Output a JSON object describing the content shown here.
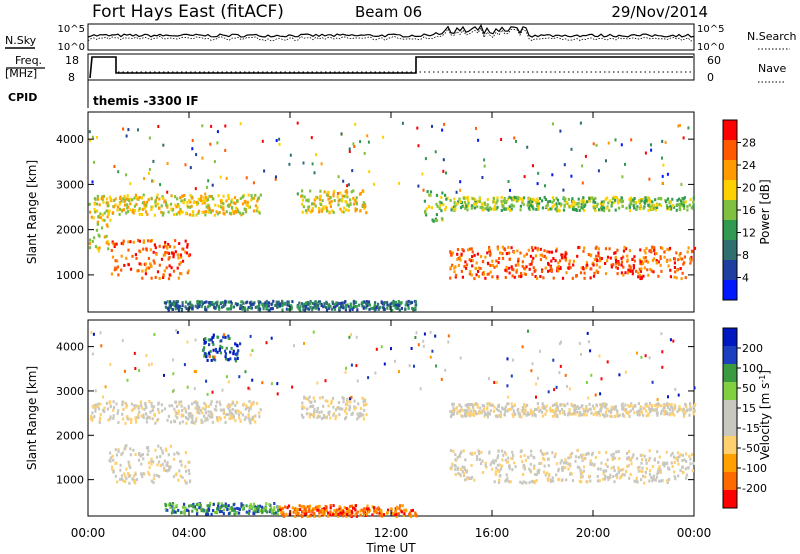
{
  "header": {
    "title": "Fort Hays East (fitACF)",
    "beam": "Beam 06",
    "date": "29/Nov/2014"
  },
  "top_panels": {
    "nsky_label": "N.Sky",
    "nsearch_label": "N.Search",
    "noise_left_ticks": [
      "10^5",
      "10^0"
    ],
    "noise_right_ticks": [
      "10^5",
      "10^0"
    ],
    "freq_label_line1": "Freq.",
    "freq_label_line2": "[MHz]",
    "freq_ticks": [
      "18",
      "8"
    ],
    "nave_label": "Nave",
    "nave_ticks": [
      "60",
      "0"
    ],
    "cpid_label": "CPID",
    "cpid_value": "themis -3300 IF"
  },
  "colors": {
    "power_scale": [
      "#0018ff",
      "#1f3fa0",
      "#2f6f70",
      "#2f9a50",
      "#7fc040",
      "#ffd000",
      "#ff9a00",
      "#ff5a00",
      "#ff0000"
    ],
    "velocity_scale": [
      "#ff0000",
      "#ff6a00",
      "#ffa000",
      "#ffd070",
      "#c8c8c0",
      "#c8c8c0",
      "#80d040",
      "#3a9a40",
      "#1a40c0",
      "#0018c0"
    ]
  },
  "chart_data": [
    {
      "type": "heatmap",
      "name": "power",
      "ylabel": "Slant Range [km]",
      "yticks": [
        1000,
        2000,
        3000,
        4000
      ],
      "ylim": [
        180,
        4600
      ],
      "xlim": [
        0,
        24
      ],
      "xticks": [
        "00:00",
        "04:00",
        "08:00",
        "12:00",
        "16:00",
        "20:00",
        "00:00"
      ],
      "colorbar_label": "Power [dB]",
      "colorbar_ticks": [
        "4",
        "8",
        "12",
        "16",
        "20",
        "24",
        "28"
      ],
      "bands": [
        {
          "t0": 0.0,
          "t1": 0.9,
          "r0": 1500,
          "r1": 2800,
          "level": 5
        },
        {
          "t0": 0.9,
          "t1": 4.0,
          "r0": 950,
          "r1": 1800,
          "level": 7
        },
        {
          "t0": 0.2,
          "t1": 6.8,
          "r0": 2350,
          "r1": 2800,
          "level": 5
        },
        {
          "t0": 8.4,
          "t1": 11.0,
          "r0": 2400,
          "r1": 2900,
          "level": 5
        },
        {
          "t0": 13.3,
          "t1": 14.2,
          "r0": 2200,
          "r1": 2900,
          "level": 4
        },
        {
          "t0": 14.3,
          "t1": 24.0,
          "r0": 950,
          "r1": 1650,
          "level": 7
        },
        {
          "t0": 14.3,
          "t1": 24.0,
          "r0": 2450,
          "r1": 2750,
          "level": 4
        },
        {
          "t0": 3.0,
          "t1": 13.0,
          "r0": 250,
          "r1": 450,
          "level": 2
        }
      ]
    },
    {
      "type": "heatmap",
      "name": "velocity",
      "ylabel": "Slant Range [km]",
      "xlabel": "Time UT",
      "yticks": [
        1000,
        2000,
        3000,
        4000
      ],
      "ylim": [
        180,
        4600
      ],
      "xlim": [
        0,
        24
      ],
      "xticks": [
        "00:00",
        "04:00",
        "08:00",
        "12:00",
        "16:00",
        "20:00",
        "00:00"
      ],
      "colorbar_label": "Velocity [m s",
      "colorbar_label_exp": "-1",
      "colorbar_label_close": "]",
      "colorbar_ticks": [
        "200",
        "100",
        "50",
        "15",
        "-15",
        "-50",
        "-100",
        "-200"
      ],
      "bands": [
        {
          "t0": 0.0,
          "t1": 6.8,
          "r0": 2300,
          "r1": 2800,
          "level": 4
        },
        {
          "t0": 0.8,
          "t1": 4.0,
          "r0": 950,
          "r1": 1800,
          "level": 4
        },
        {
          "t0": 8.4,
          "t1": 11.0,
          "r0": 2400,
          "r1": 2900,
          "level": 4
        },
        {
          "t0": 14.3,
          "t1": 24.0,
          "r0": 950,
          "r1": 1700,
          "level": 4
        },
        {
          "t0": 14.3,
          "t1": 24.0,
          "r0": 2450,
          "r1": 2750,
          "level": 4
        },
        {
          "t0": 3.0,
          "t1": 7.5,
          "r0": 250,
          "r1": 500,
          "level": 7
        },
        {
          "t0": 7.5,
          "t1": 13.0,
          "r0": 200,
          "r1": 450,
          "level": 1
        },
        {
          "t0": 4.5,
          "t1": 6.0,
          "r0": 3700,
          "r1": 4300,
          "level": 8
        }
      ]
    }
  ]
}
